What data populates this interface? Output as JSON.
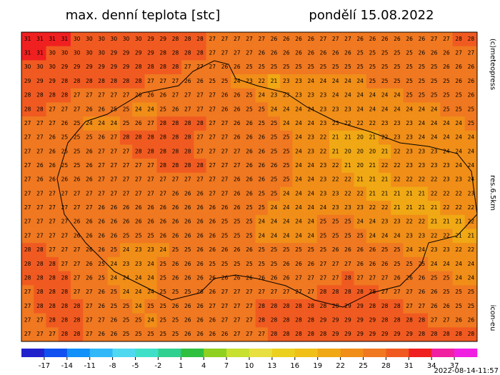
{
  "header": {
    "title": "max. denní teplota [stc]",
    "date": "pondělí 15.08.2022"
  },
  "side": {
    "copyright": "(c)meteopress",
    "resolution": "res.6.5km",
    "model": "icon-eu"
  },
  "footer": {
    "timestamp": "2022-08-14-11:57"
  },
  "grid": [
    [
      31,
      31,
      31,
      31,
      30,
      30,
      30,
      30,
      30,
      30,
      29,
      29,
      28,
      28,
      28,
      27,
      27,
      27,
      27,
      27,
      26,
      26,
      26,
      26,
      27,
      27,
      27,
      26,
      26,
      26,
      26,
      26,
      26,
      27,
      27,
      28,
      28
    ],
    [
      31,
      31,
      30,
      30,
      30,
      30,
      30,
      29,
      29,
      29,
      29,
      28,
      28,
      28,
      28,
      27,
      27,
      27,
      27,
      26,
      26,
      26,
      26,
      26,
      26,
      26,
      26,
      25,
      25,
      25,
      25,
      25,
      26,
      26,
      26,
      27,
      27
    ],
    [
      30,
      30,
      30,
      29,
      29,
      29,
      29,
      29,
      29,
      28,
      28,
      28,
      28,
      27,
      27,
      27,
      26,
      26,
      25,
      25,
      25,
      25,
      25,
      25,
      25,
      25,
      25,
      25,
      25,
      25,
      25,
      25,
      25,
      25,
      26,
      26,
      26
    ],
    [
      29,
      29,
      29,
      28,
      28,
      28,
      28,
      28,
      28,
      28,
      27,
      27,
      27,
      26,
      26,
      25,
      25,
      24,
      23,
      22,
      21,
      23,
      23,
      24,
      24,
      24,
      24,
      24,
      25,
      25,
      25,
      25,
      25,
      25,
      25,
      26,
      26
    ],
    [
      28,
      28,
      28,
      28,
      27,
      27,
      27,
      27,
      27,
      26,
      26,
      26,
      27,
      27,
      27,
      27,
      26,
      26,
      25,
      24,
      23,
      23,
      23,
      23,
      23,
      24,
      24,
      24,
      24,
      24,
      24,
      25,
      25,
      25,
      25,
      25,
      26
    ],
    [
      28,
      28,
      27,
      27,
      27,
      26,
      26,
      25,
      25,
      24,
      24,
      25,
      26,
      27,
      27,
      27,
      26,
      26,
      25,
      25,
      24,
      24,
      24,
      24,
      23,
      23,
      23,
      24,
      24,
      24,
      24,
      24,
      24,
      24,
      25,
      25,
      25
    ],
    [
      27,
      27,
      27,
      26,
      25,
      24,
      24,
      24,
      25,
      26,
      27,
      28,
      28,
      28,
      28,
      27,
      27,
      26,
      26,
      25,
      25,
      24,
      24,
      24,
      23,
      23,
      22,
      22,
      22,
      23,
      23,
      23,
      24,
      24,
      24,
      24,
      25
    ],
    [
      27,
      27,
      26,
      25,
      25,
      25,
      26,
      27,
      28,
      28,
      28,
      28,
      28,
      28,
      27,
      27,
      27,
      26,
      26,
      26,
      25,
      25,
      24,
      23,
      22,
      21,
      21,
      20,
      21,
      22,
      23,
      23,
      24,
      24,
      24,
      24,
      24
    ],
    [
      27,
      27,
      26,
      25,
      25,
      26,
      27,
      27,
      27,
      28,
      28,
      28,
      28,
      28,
      27,
      27,
      27,
      27,
      26,
      26,
      25,
      25,
      24,
      23,
      22,
      21,
      20,
      20,
      20,
      21,
      22,
      23,
      23,
      23,
      24,
      24,
      24
    ],
    [
      27,
      26,
      26,
      25,
      25,
      26,
      27,
      27,
      27,
      27,
      27,
      28,
      28,
      28,
      28,
      27,
      27,
      27,
      26,
      26,
      26,
      25,
      24,
      24,
      23,
      22,
      21,
      20,
      21,
      22,
      22,
      23,
      23,
      23,
      23,
      24,
      24
    ],
    [
      27,
      26,
      26,
      26,
      26,
      26,
      27,
      27,
      27,
      27,
      27,
      27,
      27,
      27,
      27,
      27,
      27,
      26,
      26,
      26,
      25,
      25,
      24,
      24,
      23,
      22,
      22,
      21,
      21,
      21,
      22,
      22,
      22,
      22,
      23,
      23,
      24
    ],
    [
      27,
      27,
      27,
      27,
      27,
      27,
      27,
      27,
      27,
      27,
      27,
      27,
      26,
      26,
      26,
      27,
      27,
      26,
      26,
      25,
      25,
      24,
      24,
      24,
      23,
      23,
      22,
      22,
      21,
      21,
      21,
      21,
      21,
      22,
      22,
      22,
      23
    ],
    [
      27,
      27,
      27,
      27,
      27,
      27,
      26,
      26,
      26,
      26,
      26,
      26,
      26,
      26,
      26,
      26,
      26,
      26,
      25,
      25,
      24,
      24,
      24,
      24,
      24,
      23,
      23,
      23,
      22,
      22,
      21,
      21,
      21,
      21,
      22,
      22,
      22
    ],
    [
      27,
      27,
      27,
      27,
      26,
      26,
      26,
      26,
      26,
      26,
      26,
      26,
      26,
      26,
      26,
      26,
      25,
      25,
      25,
      24,
      24,
      24,
      24,
      24,
      25,
      25,
      25,
      24,
      24,
      23,
      23,
      22,
      22,
      21,
      21,
      21,
      22
    ],
    [
      27,
      27,
      27,
      27,
      26,
      26,
      26,
      26,
      25,
      25,
      25,
      26,
      26,
      26,
      26,
      26,
      25,
      25,
      25,
      24,
      24,
      24,
      24,
      24,
      25,
      25,
      25,
      25,
      24,
      24,
      24,
      23,
      23,
      22,
      22,
      21,
      21
    ],
    [
      28,
      28,
      27,
      27,
      27,
      26,
      26,
      25,
      24,
      23,
      23,
      24,
      25,
      25,
      26,
      26,
      26,
      26,
      26,
      25,
      25,
      25,
      25,
      25,
      25,
      26,
      26,
      26,
      26,
      25,
      25,
      24,
      24,
      23,
      23,
      22,
      22
    ],
    [
      28,
      28,
      28,
      27,
      27,
      26,
      25,
      24,
      23,
      23,
      24,
      25,
      26,
      26,
      26,
      25,
      25,
      25,
      25,
      25,
      25,
      26,
      26,
      26,
      27,
      27,
      27,
      26,
      26,
      26,
      25,
      25,
      25,
      24,
      24,
      24,
      24
    ],
    [
      28,
      28,
      28,
      28,
      27,
      26,
      25,
      24,
      24,
      24,
      24,
      25,
      26,
      26,
      26,
      26,
      26,
      26,
      26,
      26,
      26,
      26,
      27,
      27,
      27,
      27,
      28,
      27,
      27,
      27,
      26,
      26,
      26,
      25,
      25,
      24,
      24
    ],
    [
      27,
      28,
      28,
      28,
      27,
      27,
      26,
      25,
      24,
      24,
      24,
      25,
      25,
      25,
      26,
      26,
      27,
      27,
      27,
      27,
      27,
      27,
      27,
      27,
      28,
      28,
      28,
      28,
      28,
      27,
      27,
      27,
      26,
      26,
      25,
      25,
      25
    ],
    [
      27,
      28,
      28,
      28,
      28,
      27,
      26,
      25,
      25,
      24,
      25,
      25,
      26,
      26,
      26,
      27,
      27,
      27,
      27,
      28,
      28,
      28,
      28,
      28,
      28,
      28,
      29,
      29,
      28,
      28,
      28,
      27,
      27,
      26,
      26,
      25,
      25
    ],
    [
      27,
      27,
      28,
      28,
      28,
      27,
      27,
      26,
      25,
      25,
      24,
      25,
      25,
      26,
      26,
      26,
      27,
      27,
      27,
      28,
      28,
      28,
      28,
      28,
      29,
      29,
      29,
      29,
      29,
      28,
      28,
      28,
      28,
      27,
      27,
      26,
      26
    ],
    [
      27,
      27,
      27,
      28,
      28,
      27,
      26,
      26,
      25,
      25,
      25,
      25,
      25,
      26,
      26,
      26,
      26,
      27,
      27,
      27,
      28,
      28,
      28,
      28,
      28,
      29,
      29,
      29,
      29,
      29,
      29,
      29,
      28,
      28,
      28,
      28,
      28
    ]
  ],
  "colorbar": {
    "range": [
      -20,
      40
    ],
    "colors": [
      "#2222cc",
      "#1050f0",
      "#1090f8",
      "#30b8f8",
      "#50d8f0",
      "#40e0c8",
      "#30d090",
      "#30c040",
      "#90d020",
      "#c8e030",
      "#e8e040",
      "#ecd020",
      "#f0c018",
      "#f0a814",
      "#f08e18",
      "#f07820",
      "#f05a20",
      "#f02020",
      "#f020a0",
      "#f020e0"
    ],
    "ticks": [
      -17,
      -14,
      -11,
      -8,
      -5,
      -2,
      1,
      4,
      7,
      10,
      13,
      16,
      19,
      22,
      25,
      28,
      31,
      34,
      37
    ]
  }
}
